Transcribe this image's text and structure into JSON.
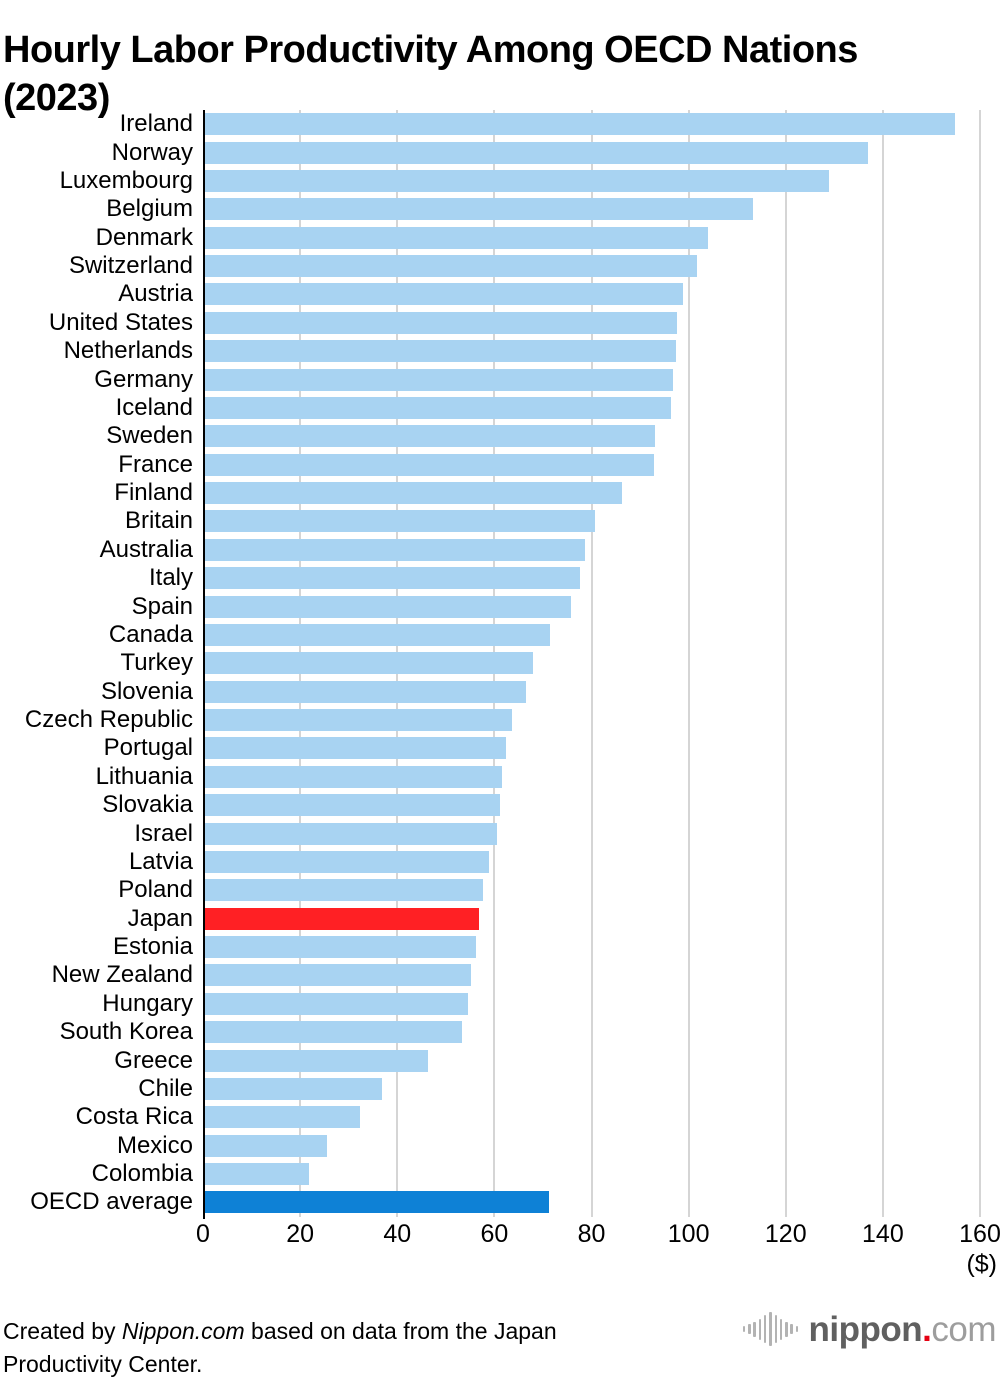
{
  "title": "Hourly Labor Productivity Among OECD Nations (2023)",
  "chart_data": {
    "type": "bar",
    "orientation": "horizontal",
    "title": "Hourly Labor Productivity Among OECD Nations (2023)",
    "xlabel": "($)",
    "xlim": [
      0,
      160
    ],
    "xticks": [
      0,
      20,
      40,
      60,
      80,
      100,
      120,
      140,
      160
    ],
    "grid": "vertical",
    "legend": "none",
    "categories": [
      "Ireland",
      "Norway",
      "Luxembourg",
      "Belgium",
      "Denmark",
      "Switzerland",
      "Austria",
      "United States",
      "Netherlands",
      "Germany",
      "Iceland",
      "Sweden",
      "France",
      "Finland",
      "Britain",
      "Australia",
      "Italy",
      "Spain",
      "Canada",
      "Turkey",
      "Slovenia",
      "Czech Republic",
      "Portugal",
      "Lithuania",
      "Slovakia",
      "Israel",
      "Latvia",
      "Poland",
      "Japan",
      "Estonia",
      "New Zealand",
      "Hungary",
      "South Korea",
      "Greece",
      "Chile",
      "Costa Rica",
      "Mexico",
      "Colombia",
      "OECD average"
    ],
    "values": [
      154.9,
      137.0,
      128.9,
      113.2,
      103.9,
      101.7,
      98.8,
      97.7,
      97.3,
      96.7,
      96.3,
      93.1,
      92.8,
      86.2,
      80.7,
      78.7,
      77.7,
      75.7,
      71.5,
      68.0,
      66.6,
      63.6,
      62.4,
      61.6,
      61.1,
      60.5,
      58.9,
      57.6,
      56.8,
      56.3,
      55.2,
      54.6,
      53.3,
      46.4,
      36.8,
      32.4,
      25.5,
      21.9,
      71.2
    ],
    "colors": {
      "default_bar": "#a8d3f2",
      "japan_bar": "#ff2024",
      "oecd_average_bar": "#0e81d6",
      "gridline": "#d5d5d5",
      "axis": "#000000"
    },
    "highlighted": {
      "Japan": "japan_bar",
      "OECD average": "oecd_average_bar"
    }
  },
  "x_axis_unit": "($)",
  "footer": {
    "credit": {
      "prefix": "Created by ",
      "source": "Nippon.com",
      "suffix": " based on data from the Japan Productivity Center."
    },
    "logo": {
      "icon": "waveform-icon",
      "word": "nippon",
      "dot": ".",
      "tld": "com",
      "word_color": "#606060",
      "dot_color": "#e60012",
      "tld_color": "#9d9d9d",
      "icon_color": "#b3b3b3"
    }
  }
}
